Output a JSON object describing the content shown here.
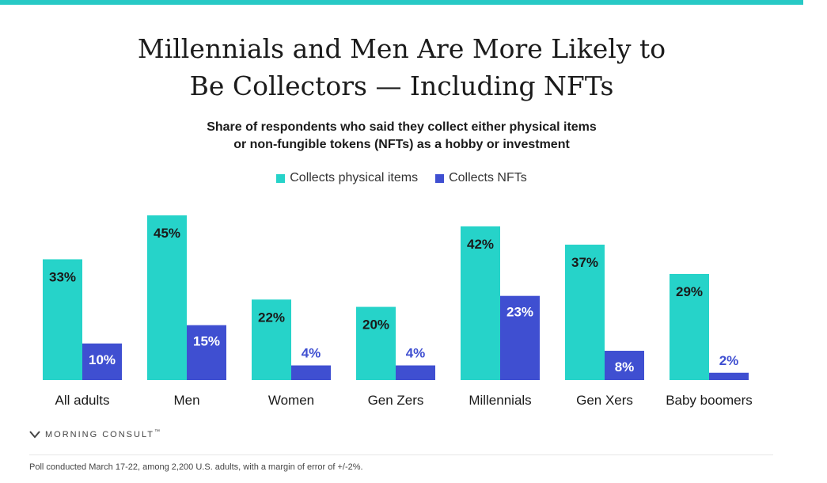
{
  "chart_data": {
    "type": "bar",
    "title": "Millennials and Men Are More Likely to Be Collectors — Including NFTs",
    "title_lines": [
      "Millennials and Men Are More Likely to",
      "Be Collectors — Including NFTs"
    ],
    "subtitle_lines": [
      "Share of respondents who said they collect either physical items",
      "or non-fungible tokens (NFTs) as a hobby or investment"
    ],
    "categories": [
      "All adults",
      "Men",
      "Women",
      "Gen Zers",
      "Millennials",
      "Gen Xers",
      "Baby boomers"
    ],
    "series": [
      {
        "name": "Collects physical items",
        "color": "#26d3c9",
        "values": [
          33,
          45,
          22,
          20,
          42,
          37,
          29
        ],
        "labels": [
          "33%",
          "45%",
          "22%",
          "20%",
          "42%",
          "37%",
          "29%"
        ]
      },
      {
        "name": "Collects NFTs",
        "color": "#3f4fd1",
        "values": [
          10,
          15,
          4,
          4,
          23,
          8,
          2
        ],
        "labels": [
          "10%",
          "15%",
          "4%",
          "4%",
          "23%",
          "8%",
          "2%"
        ]
      }
    ],
    "ylim": [
      0,
      45
    ],
    "grid": false,
    "legend_position": "top-center"
  },
  "brand": {
    "name": "MORNING CONSULT",
    "mark": "™"
  },
  "footnote": "Poll conducted March 17-22, among 2,200 U.S. adults, with a margin of error of +/-2%."
}
